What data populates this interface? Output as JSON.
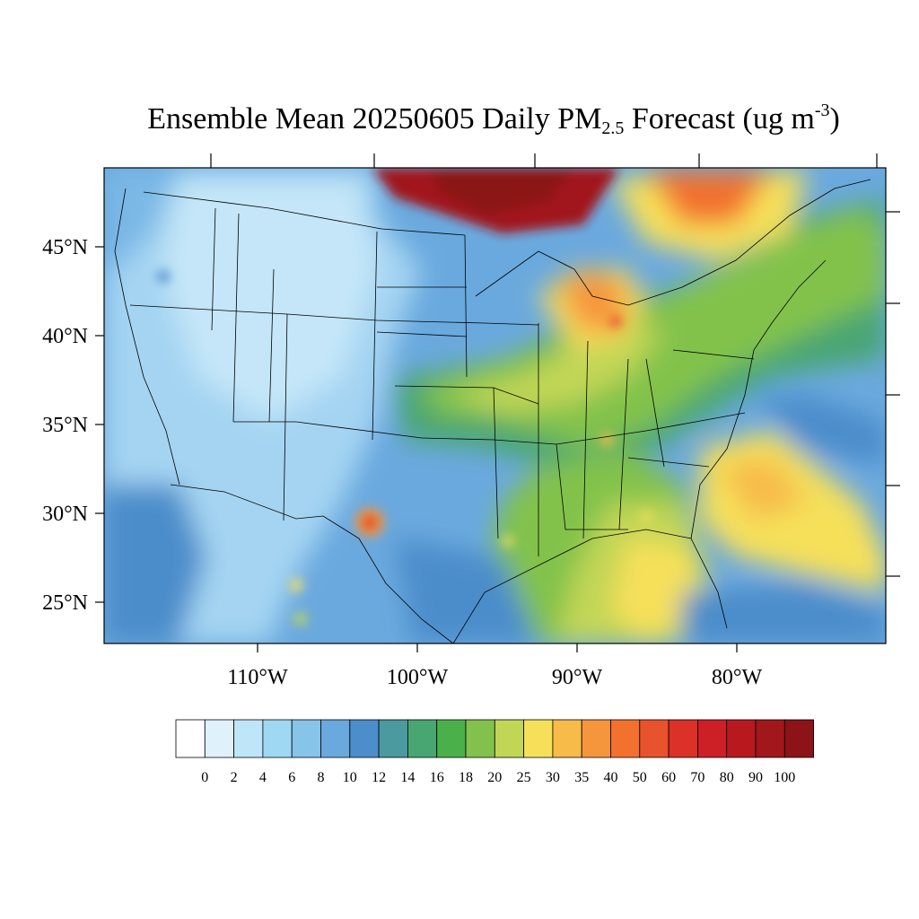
{
  "title": {
    "prefix": "Ensemble Mean 20250605 Daily PM",
    "subscript": "2.5",
    "middle": " Forecast (ug m",
    "superscript": "-3",
    "suffix": ")"
  },
  "map": {
    "lat_labels": [
      "45°N",
      "40°N",
      "35°N",
      "30°N",
      "25°N"
    ],
    "lon_labels": [
      "110°W",
      "100°W",
      "90°W",
      "80°W"
    ]
  },
  "colorbar": {
    "levels": [
      "0",
      "2",
      "4",
      "6",
      "8",
      "10",
      "12",
      "14",
      "16",
      "18",
      "20",
      "25",
      "30",
      "35",
      "40",
      "50",
      "60",
      "70",
      "80",
      "90",
      "100"
    ],
    "colors": [
      "#ffffff",
      "#dff2fb",
      "#bfe6f8",
      "#9fd8f3",
      "#86c4ea",
      "#6aa9de",
      "#4c8dcb",
      "#4a9aa0",
      "#48a672",
      "#4ab04a",
      "#82c24c",
      "#c2d656",
      "#f6e05a",
      "#f7bb4a",
      "#f6963c",
      "#f2712e",
      "#e8522c",
      "#db3128",
      "#cc1f26",
      "#b8191f",
      "#a1171b",
      "#8c1418"
    ]
  }
}
